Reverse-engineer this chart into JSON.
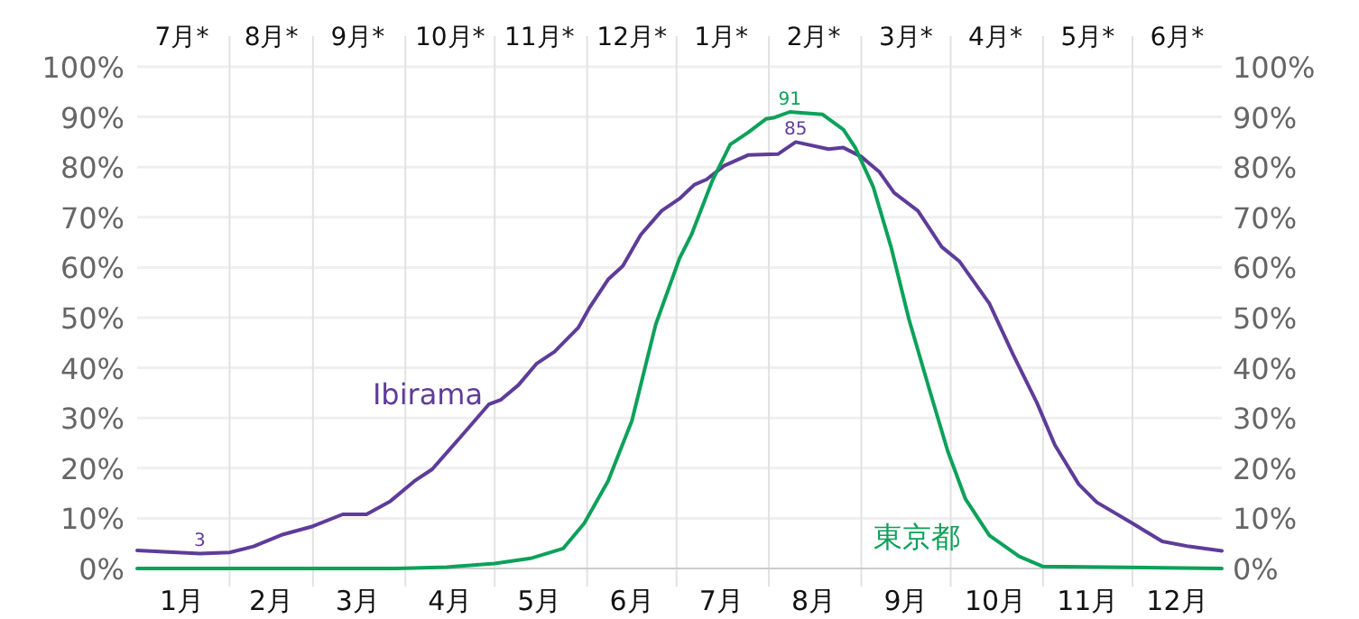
{
  "chart_data": {
    "type": "line",
    "xlim": [
      "--01-01",
      "--12-31"
    ],
    "ylim": [
      0,
      100
    ],
    "y2lim": [
      0,
      100
    ],
    "xticks": [
      {
        "value": "--01-16",
        "label": "1月"
      },
      {
        "value": "--02-01",
        "label": null
      },
      {
        "value": "--02-15",
        "label": "2月"
      },
      {
        "value": "--03-01",
        "label": null
      },
      {
        "value": "--03-16",
        "label": "3月"
      },
      {
        "value": "--04-01",
        "label": null
      },
      {
        "value": "--04-16",
        "label": "4月"
      },
      {
        "value": "--05-01",
        "label": null
      },
      {
        "value": "--05-16",
        "label": "5月"
      },
      {
        "value": "--06-01",
        "label": null
      },
      {
        "value": "--06-16",
        "label": "6月"
      },
      {
        "value": "--07-01",
        "label": null
      },
      {
        "value": "--07-16",
        "label": "7月"
      },
      {
        "value": "--08-01",
        "label": null
      },
      {
        "value": "--08-16",
        "label": "8月"
      },
      {
        "value": "--09-01",
        "label": null
      },
      {
        "value": "--09-16",
        "label": "9月"
      },
      {
        "value": "--10-01",
        "label": null
      },
      {
        "value": "--10-16",
        "label": "10月"
      },
      {
        "value": "--11-01",
        "label": null
      },
      {
        "value": "--11-16",
        "label": "11月"
      },
      {
        "value": "--12-01",
        "label": null
      },
      {
        "value": "--12-16",
        "label": "12月"
      }
    ],
    "yticks": [
      {
        "value": 0,
        "label": "0%"
      },
      {
        "value": 10,
        "label": "10%"
      },
      {
        "value": 20,
        "label": "20%"
      },
      {
        "value": 30,
        "label": "30%"
      },
      {
        "value": 40,
        "label": "40%"
      },
      {
        "value": 50,
        "label": "50%"
      },
      {
        "value": 60,
        "label": "60%"
      },
      {
        "value": 70,
        "label": "70%"
      },
      {
        "value": 80,
        "label": "80%"
      },
      {
        "value": 90,
        "label": "90%"
      },
      {
        "value": 100,
        "label": "100%"
      }
    ],
    "y2ticks": [
      {
        "value": 0,
        "label": "0%"
      },
      {
        "value": 10,
        "label": "10%"
      },
      {
        "value": 20,
        "label": "20%"
      },
      {
        "value": 30,
        "label": "30%"
      },
      {
        "value": 40,
        "label": "40%"
      },
      {
        "value": 50,
        "label": "50%"
      },
      {
        "value": 60,
        "label": "60%"
      },
      {
        "value": 70,
        "label": "70%"
      },
      {
        "value": 80,
        "label": "80%"
      },
      {
        "value": 90,
        "label": "90%"
      },
      {
        "value": 100,
        "label": "100%"
      }
    ],
    "grid": true,
    "marker": "none",
    "line_style": "solid",
    "series": [
      {
        "name": "Ibirama",
        "color": "#5e3c99",
        "x": [
          "--01-01",
          "--01-22",
          "--02-01",
          "--02-09",
          "--02-19",
          "--03-01",
          "--03-11",
          "--03-19",
          "--03-27",
          "--04-04",
          "--04-10",
          "--04-21",
          "--04-29",
          "--05-03",
          "--05-09",
          "--05-15",
          "--05-21",
          "--05-29",
          "--06-02",
          "--06-08",
          "--06-13",
          "--06-19",
          "--06-26",
          "--07-02",
          "--07-07",
          "--07-11",
          "--07-17",
          "--07-25",
          "--08-04",
          "--08-10",
          "--08-21",
          "--08-26",
          "--09-01",
          "--09-07",
          "--09-12",
          "--09-20",
          "--09-28",
          "--10-04",
          "--10-14",
          "--10-22",
          "--10-30",
          "--11-05",
          "--11-13",
          "--11-19",
          "--12-01",
          "--12-11",
          "--12-20",
          "--12-31"
        ],
        "values": [
          3.6,
          3,
          3.2,
          4.4,
          6.8,
          8.4,
          10.8,
          10.8,
          13.4,
          17.4,
          19.8,
          27.2,
          32.7,
          33.6,
          36.6,
          40.8,
          43.2,
          48,
          52.2,
          57.6,
          60.3,
          66.5,
          71.3,
          73.7,
          76.5,
          77.5,
          80.3,
          82.4,
          82.6,
          85,
          83.6,
          83.9,
          82.1,
          79.1,
          74.9,
          71.3,
          64.1,
          61.2,
          52.8,
          42.6,
          33,
          24.6,
          16.8,
          13.2,
          9,
          5.4,
          4.4,
          3.5
        ]
      },
      {
        "name": "東京都",
        "color": "#0ca15a",
        "x": [
          "--01-01",
          "--03-29",
          "--04-15",
          "--05-01",
          "--05-13",
          "--05-24",
          "--05-31",
          "--06-08",
          "--06-16",
          "--06-24",
          "--07-02",
          "--07-06",
          "--07-13",
          "--07-19",
          "--07-25",
          "--07-31",
          "--08-03",
          "--08-08",
          "--08-13",
          "--08-19",
          "--08-26",
          "--08-30",
          "--09-05",
          "--09-11",
          "--09-17",
          "--09-24",
          "--09-30",
          "--10-06",
          "--10-14",
          "--10-24",
          "--11-01",
          "--12-31"
        ],
        "values": [
          0,
          0,
          0.3,
          1,
          2,
          4,
          9,
          17.4,
          29.4,
          48.6,
          61.8,
          66.5,
          77.3,
          84.5,
          86.9,
          89.6,
          89.9,
          91,
          90.8,
          90.5,
          87.5,
          83.9,
          76.1,
          64.1,
          49.7,
          35.4,
          23.4,
          13.8,
          6.6,
          2.4,
          0.4,
          0
        ]
      }
    ],
    "annotations": [
      "7月*",
      "8月*",
      "9月*",
      "10月*",
      "11月*",
      "12月*",
      "1月*",
      "2月*",
      "3月*",
      "4月*",
      "5月*",
      "6月*",
      {
        "text": "3",
        "x": "--01-22",
        "y": 3
      },
      {
        "text": "85",
        "x": "--08-10",
        "y": 85
      },
      {
        "text": "91",
        "x": "--08-08",
        "y": 91
      }
    ]
  }
}
